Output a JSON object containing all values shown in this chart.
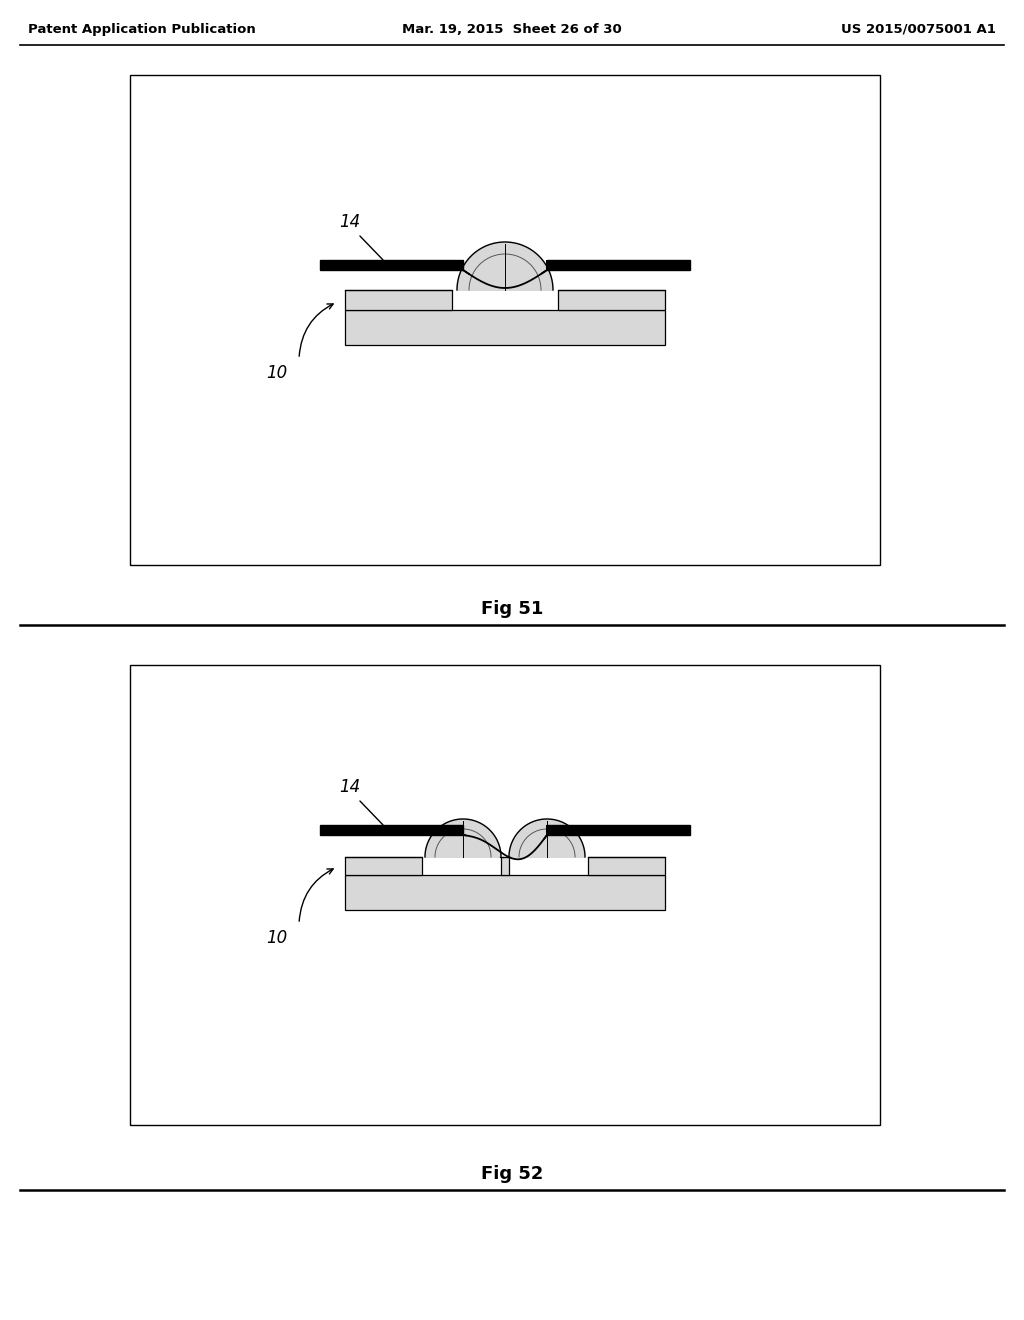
{
  "page_title_left": "Patent Application Publication",
  "page_title_mid": "Mar. 19, 2015  Sheet 26 of 30",
  "page_title_right": "US 2015/0075001 A1",
  "fig1_label": "Fig 51",
  "fig2_label": "Fig 52",
  "label_14": "14",
  "label_10": "10",
  "bg_color": "#ffffff",
  "line_color": "#000000",
  "black_fill": "#000000",
  "light_gray": "#d8d8d8",
  "mid_gray": "#b0b0b0",
  "panel_bg": "#f5f5f5"
}
